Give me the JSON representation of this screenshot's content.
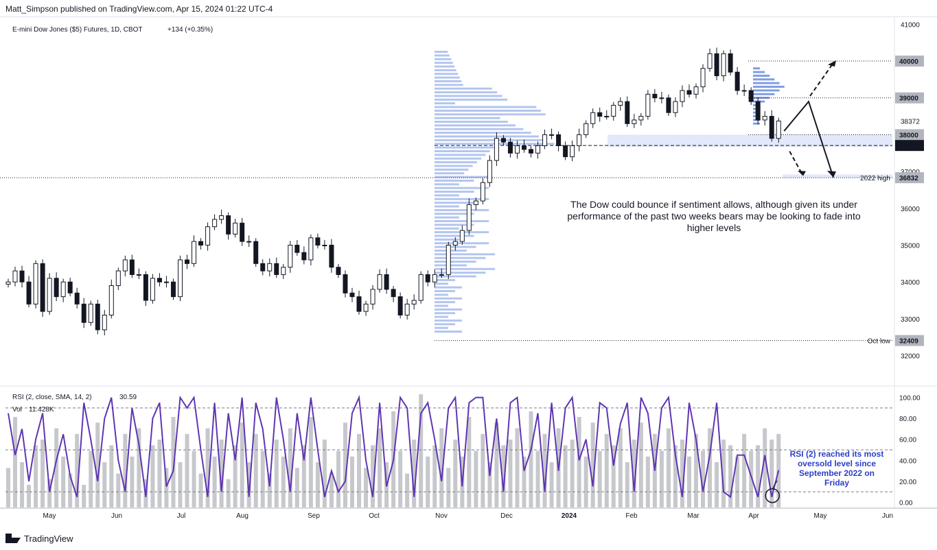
{
  "header": {
    "publisher": "Matt_Simpson published on TradingView.com, Apr 15, 2024 01:22 UTC-4"
  },
  "footer": {
    "brand": "TradingView"
  },
  "colors": {
    "candle_body": "#131722",
    "profile": "#b3c5ef",
    "profile_dark": "#7f9de4",
    "rsi_line": "#5e35b1",
    "volume": "#c7c8cc",
    "zone": "#e3e8fa",
    "note_blue": "#2c3ec9"
  },
  "chart_data": [
    {
      "type": "candlestick",
      "title": "E-mini Dow Jones ($5) Futures, 1D, CBOT",
      "change_text": "+134 (+0.35%)",
      "y_ticks": [
        "41000",
        "40000",
        "39000",
        "38000",
        "37000",
        "36000",
        "35000",
        "34000",
        "33000",
        "32000"
      ],
      "ylim": [
        31600,
        41100
      ],
      "x_ticks": [
        "May",
        "Jun",
        "Jul",
        "Aug",
        "Sep",
        "Oct",
        "Nov",
        "Dec",
        "2024",
        "Feb",
        "Mar",
        "Apr",
        "May",
        "Jun"
      ],
      "closes": [
        34000,
        34300,
        34000,
        33400,
        34500,
        33200,
        34100,
        33600,
        34000,
        33700,
        33400,
        32900,
        33400,
        32700,
        33100,
        33900,
        34300,
        34600,
        34200,
        34200,
        33500,
        34100,
        34000,
        34000,
        33600,
        34600,
        34500,
        35100,
        35000,
        35500,
        35700,
        35800,
        35300,
        35600,
        35100,
        35100,
        34500,
        34300,
        34500,
        34200,
        34400,
        35000,
        34800,
        34600,
        35200,
        35000,
        35000,
        34400,
        34200,
        33700,
        33600,
        33200,
        33400,
        33800,
        34200,
        33800,
        33600,
        33100,
        33400,
        33500,
        34200,
        34000,
        34200,
        34200,
        35000,
        35100,
        35400,
        36100,
        36200,
        36700,
        37300,
        37900,
        37800,
        37500,
        37700,
        37600,
        37500,
        37700,
        38000,
        38000,
        37700,
        37400,
        37700,
        38000,
        38300,
        38600,
        38500,
        38500,
        38800,
        38900,
        38300,
        38400,
        38500,
        39100,
        39000,
        39000,
        38600,
        38900,
        39200,
        39100,
        39300,
        39800,
        40200,
        39600,
        40200,
        39700,
        39200,
        39200,
        38900,
        38400,
        38500,
        37900,
        38372
      ],
      "current_price": "38372",
      "levels": [
        {
          "price": 40000,
          "label": "40000"
        },
        {
          "price": 39000,
          "label": "39000"
        },
        {
          "price": 38000,
          "label": "38000"
        },
        {
          "price": 37707,
          "label": "37707"
        },
        {
          "price": 36832,
          "label": "36832",
          "note": "2022 high"
        },
        {
          "price": 32409,
          "label": "32409",
          "note": "Oct low"
        }
      ],
      "annotation": "The Dow could bounce if sentiment allows, although given its under performance of the past two weeks bears may be looking to fade into higher levels"
    },
    {
      "type": "line",
      "title": "RSI (2, close, SMA, 14, 2)",
      "rsi_value": "30.59",
      "volume_label": "Vol",
      "volume_value": "11.428K",
      "y_ticks": [
        "100.00",
        "80.00",
        "60.00",
        "40.00",
        "20.00",
        "0.00"
      ],
      "ylim": [
        -5,
        105
      ],
      "levels": [
        90,
        50,
        10
      ],
      "rsi": [
        85,
        45,
        70,
        20,
        60,
        85,
        10,
        40,
        65,
        25,
        5,
        95,
        60,
        20,
        80,
        100,
        40,
        10,
        90,
        55,
        5,
        80,
        95,
        15,
        30,
        100,
        90,
        100,
        50,
        5,
        95,
        10,
        85,
        40,
        100,
        5,
        95,
        70,
        15,
        100,
        60,
        10,
        85,
        40,
        100,
        50,
        5,
        30,
        10,
        20,
        85,
        100,
        40,
        5,
        95,
        15,
        40,
        100,
        90,
        5,
        85,
        95,
        60,
        20,
        90,
        100,
        15,
        95,
        100,
        100,
        25,
        80,
        10,
        95,
        100,
        30,
        50,
        85,
        10,
        95,
        30,
        90,
        100,
        40,
        60,
        15,
        95,
        90,
        35,
        75,
        95,
        10,
        100,
        85,
        30,
        90,
        100,
        45,
        5,
        95,
        60,
        10,
        45,
        95,
        10,
        5,
        45,
        45,
        25,
        5,
        45,
        5,
        30.59
      ],
      "volume": [
        35,
        80,
        40,
        20,
        55,
        60,
        25,
        70,
        45,
        30,
        65,
        20,
        50,
        75,
        40,
        55,
        30,
        65,
        45,
        70,
        25,
        55,
        60,
        35,
        80,
        40,
        65,
        50,
        30,
        70,
        45,
        60,
        25,
        55,
        75,
        40,
        65,
        50,
        30,
        60,
        45,
        70,
        35,
        55,
        80,
        40,
        60,
        30,
        50,
        75,
        45,
        65,
        35,
        55,
        70,
        40,
        85,
        50,
        30,
        60,
        100,
        45,
        55,
        70,
        35,
        60,
        45,
        80,
        50,
        65,
        40,
        75,
        55,
        60,
        70,
        45,
        85,
        50,
        65,
        40,
        70,
        55,
        60,
        80,
        45,
        75,
        50,
        65,
        55,
        70,
        40,
        60,
        75,
        45,
        65,
        50,
        70,
        55,
        60,
        45,
        65,
        50,
        70,
        40,
        60,
        55,
        45,
        65,
        50,
        55,
        70,
        60,
        65
      ]
    }
  ],
  "notes": {
    "rsi_note": "RSI (2) reached its most oversold level since September 2022 on Friday"
  }
}
